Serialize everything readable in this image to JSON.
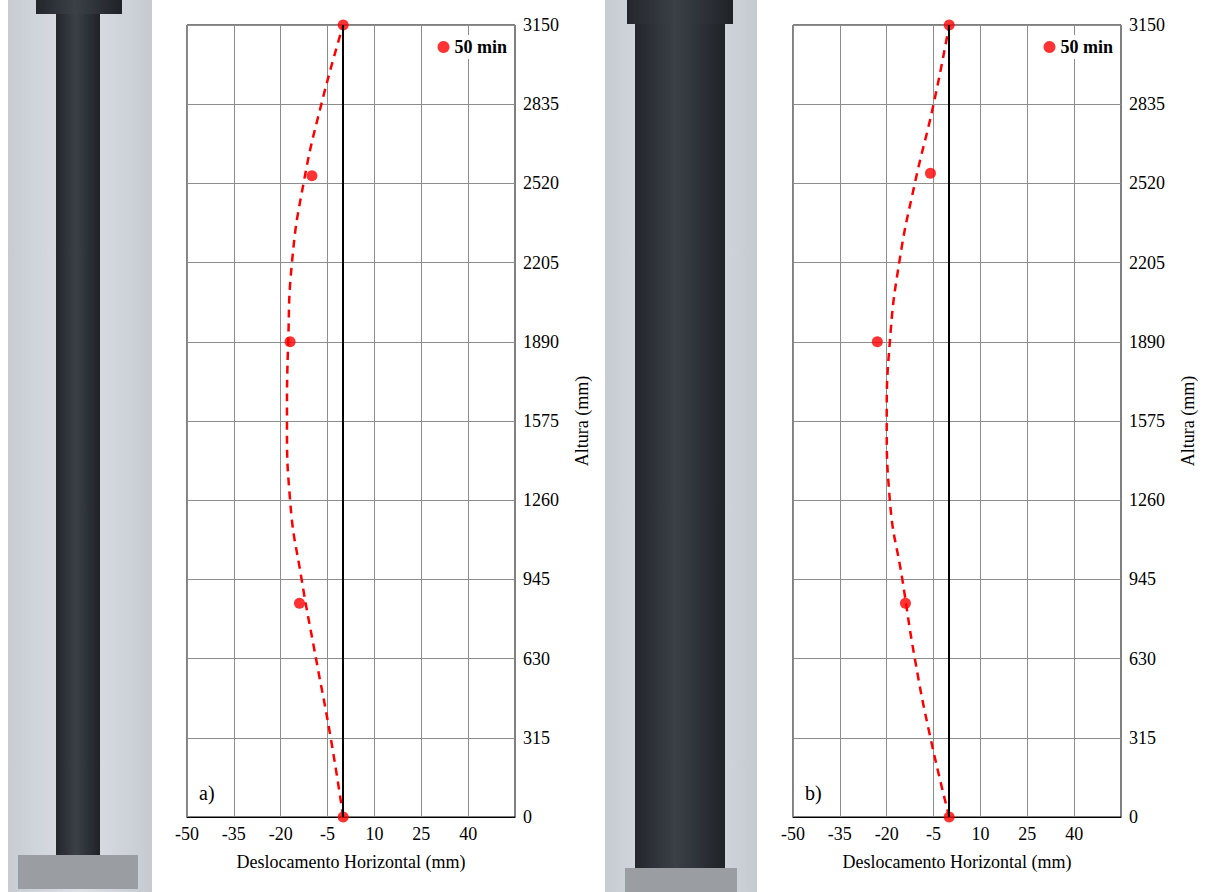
{
  "chart_data": [
    {
      "type": "scatter",
      "annotations": [
        "a)"
      ],
      "xlabel": "Deslocamento Horizontal (mm)",
      "ylabel": "Altura (mm)",
      "xlim": [
        -50,
        55
      ],
      "xticks": [
        -50,
        -35,
        -20,
        -5,
        10,
        25,
        40
      ],
      "ylim": [
        0,
        3150
      ],
      "yticks": [
        0,
        315,
        630,
        945,
        1260,
        1575,
        1890,
        2205,
        2520,
        2835,
        3150
      ],
      "grid": true,
      "legend": "upper right",
      "vlines": [
        0
      ],
      "series": [
        {
          "name": "50 min",
          "type": "scatter",
          "marker": "circle",
          "color": "#ff0000",
          "x": [
            0,
            -14,
            -17,
            -10,
            0
          ],
          "values": [
            0,
            850,
            1890,
            2550,
            3150
          ]
        },
        {
          "type": "line",
          "line_style": "dashed",
          "color": "#ff0000",
          "x": [
            0,
            -4,
            -8.7,
            -13.3,
            -17,
            -18,
            -17.6,
            -16.4,
            -12.7,
            -7,
            0
          ],
          "values": [
            0,
            315,
            630,
            945,
            1260,
            1575,
            1890,
            2205,
            2520,
            2835,
            3150
          ]
        }
      ]
    },
    {
      "type": "scatter",
      "annotations": [
        "b)"
      ],
      "xlabel": "Deslocamento Horizontal (mm)",
      "ylabel": "Altura (mm)",
      "xlim": [
        -50,
        55
      ],
      "xticks": [
        -50,
        -35,
        -20,
        -5,
        10,
        25,
        40
      ],
      "ylim": [
        0,
        3150
      ],
      "yticks": [
        0,
        315,
        630,
        945,
        1260,
        1575,
        1890,
        2205,
        2520,
        2835,
        3150
      ],
      "grid": true,
      "legend": "upper right",
      "vlines": [
        0
      ],
      "series": [
        {
          "name": "50 min",
          "type": "scatter",
          "marker": "circle",
          "color": "#ff0000",
          "x": [
            0,
            -14,
            -23,
            -6,
            0
          ],
          "values": [
            0,
            850,
            1890,
            2560,
            3150
          ]
        },
        {
          "type": "line",
          "line_style": "dashed",
          "color": "#ff0000",
          "x": [
            0,
            -6,
            -11,
            -15,
            -19,
            -20,
            -19,
            -16,
            -11,
            -5,
            0
          ],
          "values": [
            0,
            315,
            630,
            945,
            1260,
            1575,
            1890,
            2205,
            2520,
            2835,
            3150
          ]
        }
      ]
    }
  ]
}
